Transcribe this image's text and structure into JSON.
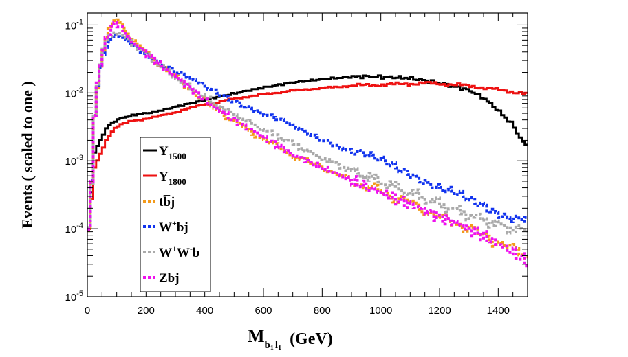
{
  "chart_data": {
    "type": "line",
    "step": true,
    "xlabel": "M",
    "xlabel_sub": "b",
    "xlabel_sub2": "1",
    "xlabel_sub3": "l",
    "xlabel_sub4": "1",
    "xlabel_unit": "(GeV)",
    "ylabel": "Events  ( scaled to one )",
    "xlim": [
      0,
      1500
    ],
    "ylim": [
      1e-05,
      0.15
    ],
    "yscale": "log",
    "xticks": [
      "0",
      "200",
      "400",
      "600",
      "800",
      "1000",
      "1200",
      "1400"
    ],
    "yticks": [
      {
        "base": "10",
        "exp": "-5"
      },
      {
        "base": "10",
        "exp": "-4"
      },
      {
        "base": "10",
        "exp": "-3"
      },
      {
        "base": "10",
        "exp": "-2"
      },
      {
        "base": "10",
        "exp": "-1"
      }
    ],
    "grid": false,
    "legend": "center-left",
    "series": [
      {
        "name": "Y",
        "sub": "1500",
        "sup": "",
        "suffix": "",
        "color": "#000000",
        "style": "solid",
        "points": [
          [
            10,
            0.0001
          ],
          [
            20,
            0.0012
          ],
          [
            30,
            0.0015
          ],
          [
            40,
            0.0018
          ],
          [
            50,
            0.0022
          ],
          [
            60,
            0.0028
          ],
          [
            70,
            0.0032
          ],
          [
            80,
            0.0035
          ],
          [
            90,
            0.0037
          ],
          [
            100,
            0.004
          ],
          [
            120,
            0.0043
          ],
          [
            140,
            0.0045
          ],
          [
            160,
            0.0047
          ],
          [
            180,
            0.0049
          ],
          [
            200,
            0.005
          ],
          [
            250,
            0.0055
          ],
          [
            300,
            0.0062
          ],
          [
            350,
            0.007
          ],
          [
            400,
            0.0079
          ],
          [
            450,
            0.0088
          ],
          [
            500,
            0.0098
          ],
          [
            600,
            0.012
          ],
          [
            700,
            0.0142
          ],
          [
            800,
            0.016
          ],
          [
            900,
            0.0172
          ],
          [
            950,
            0.0175
          ],
          [
            1000,
            0.0172
          ],
          [
            1050,
            0.017
          ],
          [
            1100,
            0.0165
          ],
          [
            1150,
            0.0152
          ],
          [
            1200,
            0.014
          ],
          [
            1250,
            0.0125
          ],
          [
            1300,
            0.011
          ],
          [
            1350,
            0.0085
          ],
          [
            1400,
            0.0055
          ],
          [
            1450,
            0.0034
          ],
          [
            1480,
            0.002
          ],
          [
            1500,
            0.0016
          ]
        ]
      },
      {
        "name": "Y",
        "sub": "1800",
        "sup": "",
        "suffix": "",
        "color": "#ee1111",
        "style": "solid",
        "points": [
          [
            10,
            0.0001
          ],
          [
            20,
            0.0007
          ],
          [
            30,
            0.0009
          ],
          [
            40,
            0.0011
          ],
          [
            50,
            0.0014
          ],
          [
            60,
            0.0018
          ],
          [
            70,
            0.0022
          ],
          [
            80,
            0.0026
          ],
          [
            90,
            0.0029
          ],
          [
            100,
            0.0032
          ],
          [
            120,
            0.0035
          ],
          [
            140,
            0.0037
          ],
          [
            160,
            0.0039
          ],
          [
            180,
            0.004
          ],
          [
            200,
            0.0042
          ],
          [
            250,
            0.0046
          ],
          [
            300,
            0.0052
          ],
          [
            350,
            0.006
          ],
          [
            400,
            0.0067
          ],
          [
            450,
            0.0074
          ],
          [
            500,
            0.0082
          ],
          [
            600,
            0.0095
          ],
          [
            700,
            0.0108
          ],
          [
            800,
            0.0118
          ],
          [
            900,
            0.0127
          ],
          [
            1000,
            0.0132
          ],
          [
            1100,
            0.0136
          ],
          [
            1150,
            0.0139
          ],
          [
            1200,
            0.0137
          ],
          [
            1300,
            0.0127
          ],
          [
            1400,
            0.0112
          ],
          [
            1450,
            0.0104
          ],
          [
            1500,
            0.0095
          ]
        ]
      },
      {
        "name": "tb̅j",
        "sub": "",
        "sup": "",
        "suffix": "",
        "color": "#f39a1a",
        "style": "dotted",
        "points": [
          [
            10,
            0.0001
          ],
          [
            20,
            0.0025
          ],
          [
            30,
            0.008
          ],
          [
            40,
            0.018
          ],
          [
            50,
            0.032
          ],
          [
            60,
            0.05
          ],
          [
            70,
            0.072
          ],
          [
            80,
            0.095
          ],
          [
            90,
            0.115
          ],
          [
            100,
            0.128
          ],
          [
            110,
            0.118
          ],
          [
            120,
            0.1
          ],
          [
            140,
            0.073
          ],
          [
            160,
            0.057
          ],
          [
            180,
            0.047
          ],
          [
            200,
            0.04
          ],
          [
            250,
            0.026
          ],
          [
            300,
            0.017
          ],
          [
            350,
            0.0115
          ],
          [
            400,
            0.0078
          ],
          [
            450,
            0.0054
          ],
          [
            500,
            0.0038
          ],
          [
            600,
            0.0021
          ],
          [
            700,
            0.0012
          ],
          [
            800,
            0.0008
          ],
          [
            900,
            0.00051
          ],
          [
            1000,
            0.00035
          ],
          [
            1100,
            0.00024
          ],
          [
            1200,
            0.00015
          ],
          [
            1300,
            0.0001
          ],
          [
            1400,
            6.3e-05
          ],
          [
            1450,
            5e-05
          ],
          [
            1500,
            4e-05
          ]
        ]
      },
      {
        "name": "W",
        "sub": "",
        "sup": "+",
        "suffix": "bj",
        "color": "#1133ee",
        "style": "dotted",
        "points": [
          [
            10,
            0.0001
          ],
          [
            20,
            0.0025
          ],
          [
            30,
            0.0085
          ],
          [
            40,
            0.018
          ],
          [
            50,
            0.029
          ],
          [
            60,
            0.041
          ],
          [
            70,
            0.052
          ],
          [
            80,
            0.06
          ],
          [
            90,
            0.065
          ],
          [
            100,
            0.067
          ],
          [
            110,
            0.066
          ],
          [
            120,
            0.063
          ],
          [
            140,
            0.056
          ],
          [
            160,
            0.049
          ],
          [
            180,
            0.043
          ],
          [
            200,
            0.038
          ],
          [
            250,
            0.028
          ],
          [
            300,
            0.021
          ],
          [
            350,
            0.016
          ],
          [
            400,
            0.0123
          ],
          [
            450,
            0.0096
          ],
          [
            500,
            0.0077
          ],
          [
            600,
            0.005
          ],
          [
            700,
            0.0032
          ],
          [
            800,
            0.0021
          ],
          [
            900,
            0.0014
          ],
          [
            1000,
            0.00096
          ],
          [
            1100,
            0.0007
          ],
          [
            1200,
            0.0004
          ],
          [
            1300,
            0.00026
          ],
          [
            1400,
            0.00018
          ],
          [
            1450,
            0.00015
          ],
          [
            1500,
            0.00014
          ]
        ]
      },
      {
        "name": "W",
        "sub": "",
        "sup": "+",
        "suffix": "",
        "sup2": "-",
        "suffix2": "b",
        "color": "#aaaaaa",
        "style": "dotted",
        "points": [
          [
            10,
            0.0001
          ],
          [
            20,
            0.0025
          ],
          [
            30,
            0.0085
          ],
          [
            40,
            0.02
          ],
          [
            50,
            0.035
          ],
          [
            60,
            0.05
          ],
          [
            70,
            0.063
          ],
          [
            80,
            0.072
          ],
          [
            90,
            0.076
          ],
          [
            100,
            0.078
          ],
          [
            110,
            0.075
          ],
          [
            120,
            0.07
          ],
          [
            140,
            0.06
          ],
          [
            160,
            0.052
          ],
          [
            180,
            0.044
          ],
          [
            200,
            0.037
          ],
          [
            250,
            0.025
          ],
          [
            300,
            0.017
          ],
          [
            350,
            0.012
          ],
          [
            400,
            0.0087
          ],
          [
            450,
            0.0064
          ],
          [
            500,
            0.0048
          ],
          [
            600,
            0.0029
          ],
          [
            700,
            0.0018
          ],
          [
            800,
            0.0011
          ],
          [
            900,
            0.00072
          ],
          [
            1000,
            0.0005
          ],
          [
            1100,
            0.00034
          ],
          [
            1200,
            0.00023
          ],
          [
            1300,
            0.00016
          ],
          [
            1400,
            0.000115
          ],
          [
            1450,
            0.0001
          ],
          [
            1500,
            9e-05
          ]
        ]
      },
      {
        "name": "Zbj",
        "sub": "",
        "sup": "",
        "suffix": "",
        "color": "#ee11ee",
        "style": "dotted",
        "points": [
          [
            10,
            0.0001
          ],
          [
            20,
            0.0025
          ],
          [
            30,
            0.009
          ],
          [
            40,
            0.02
          ],
          [
            50,
            0.035
          ],
          [
            60,
            0.052
          ],
          [
            70,
            0.07
          ],
          [
            80,
            0.088
          ],
          [
            90,
            0.1
          ],
          [
            100,
            0.105
          ],
          [
            110,
            0.098
          ],
          [
            120,
            0.085
          ],
          [
            140,
            0.066
          ],
          [
            160,
            0.053
          ],
          [
            180,
            0.045
          ],
          [
            200,
            0.038
          ],
          [
            250,
            0.026
          ],
          [
            300,
            0.0175
          ],
          [
            350,
            0.0119
          ],
          [
            400,
            0.008
          ],
          [
            450,
            0.0056
          ],
          [
            500,
            0.004
          ],
          [
            600,
            0.0022
          ],
          [
            700,
            0.00125
          ],
          [
            800,
            0.0008
          ],
          [
            900,
            0.00051
          ],
          [
            1000,
            0.00034
          ],
          [
            1100,
            0.00023
          ],
          [
            1200,
            0.00015
          ],
          [
            1300,
            0.0001
          ],
          [
            1400,
            6e-05
          ],
          [
            1450,
            4.5e-05
          ],
          [
            1500,
            3.2e-05
          ]
        ]
      }
    ]
  }
}
